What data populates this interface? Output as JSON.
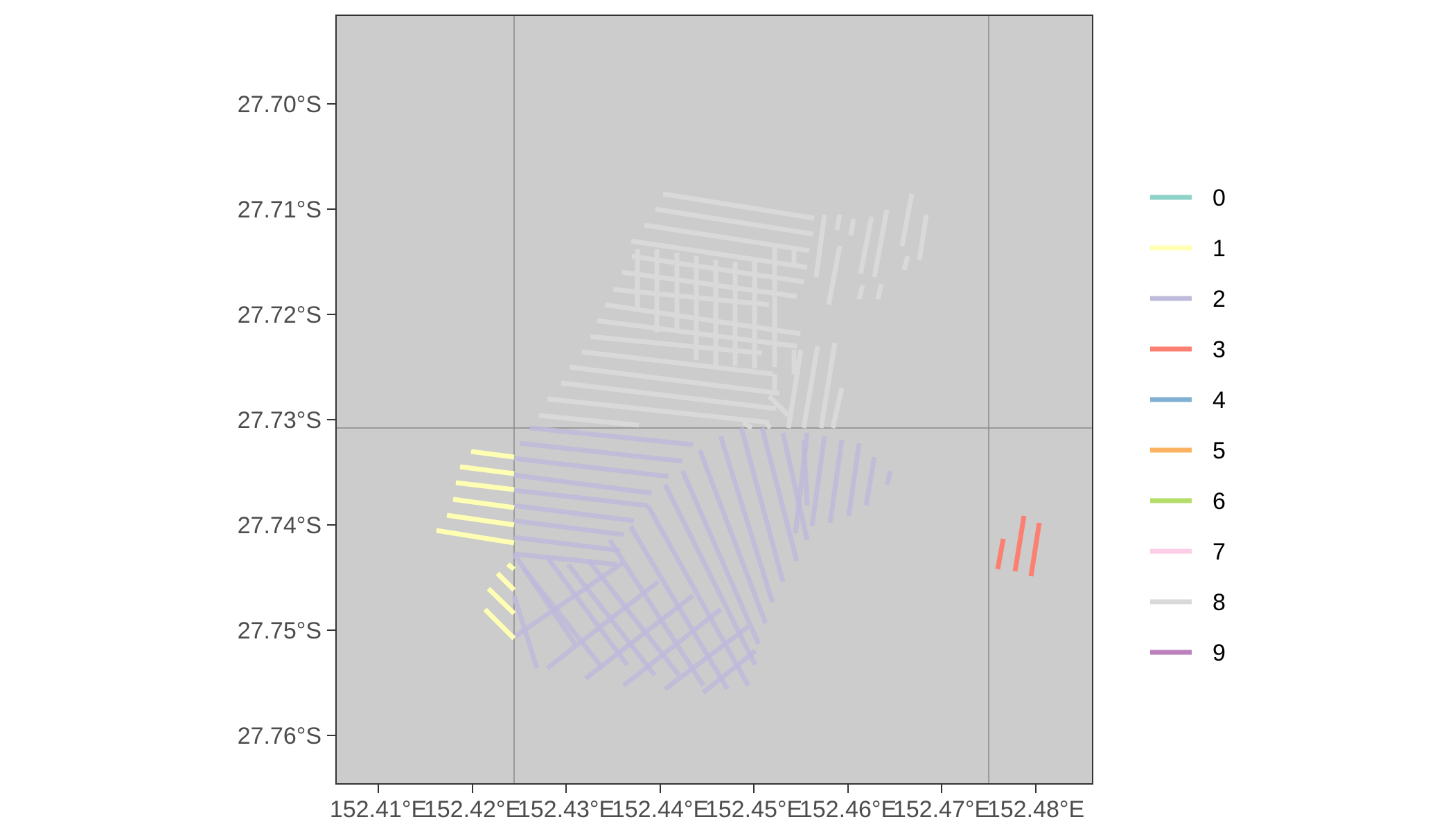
{
  "map": {
    "y_axis": {
      "labels": [
        "27.70°S",
        "27.71°S",
        "27.72°S",
        "27.73°S",
        "27.74°S",
        "27.75°S",
        "27.76°S"
      ],
      "values": [
        -27.7,
        -27.71,
        -27.72,
        -27.73,
        -27.74,
        -27.75,
        -27.76
      ]
    },
    "x_axis": {
      "labels": [
        "152.41°E",
        "152.42°E",
        "152.43°E",
        "152.44°E",
        "152.45°E",
        "152.46°E",
        "152.47°E",
        "152.48°E"
      ],
      "values": [
        152.41,
        152.42,
        152.43,
        152.44,
        152.45,
        152.46,
        152.47,
        152.48
      ]
    },
    "panel_background": "#cccccc",
    "tile_border_color": "#8a8a8a",
    "legend": {
      "placement": "right",
      "entries": [
        {
          "label": "0",
          "color": "#8dd3c7"
        },
        {
          "label": "1",
          "color": "#ffffb3"
        },
        {
          "label": "2",
          "color": "#bebada"
        },
        {
          "label": "3",
          "color": "#fb8072"
        },
        {
          "label": "4",
          "color": "#80b1d3"
        },
        {
          "label": "5",
          "color": "#fdb462"
        },
        {
          "label": "6",
          "color": "#b3de69"
        },
        {
          "label": "7",
          "color": "#fccde5"
        },
        {
          "label": "8",
          "color": "#d9d9d9"
        },
        {
          "label": "9",
          "color": "#bc80bd"
        }
      ]
    }
  }
}
